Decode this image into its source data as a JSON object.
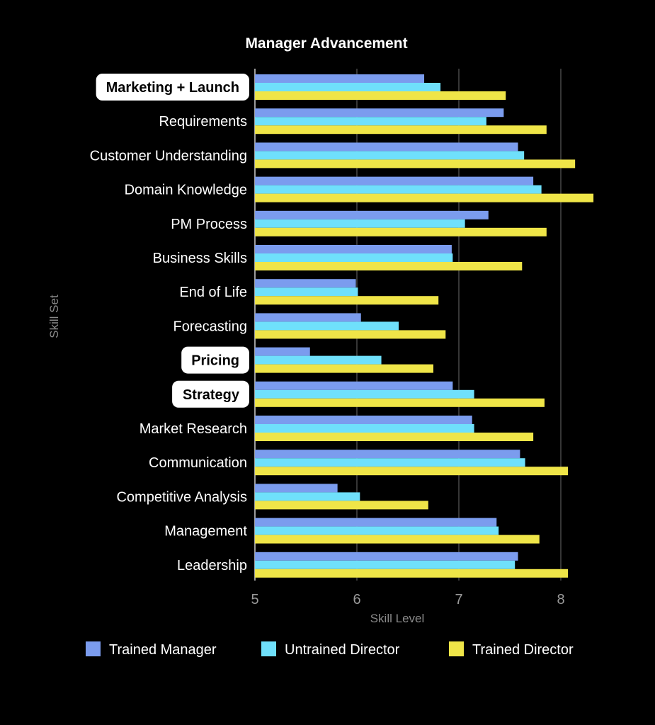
{
  "chart_data": {
    "type": "bar",
    "orientation": "horizontal",
    "title": "Manager Advancement",
    "xlabel": "Skill Level",
    "ylabel": "Skill Set",
    "xlim": [
      5,
      8.35
    ],
    "xticks": [
      5,
      6,
      7,
      8
    ],
    "grid": true,
    "legend_position": "bottom",
    "categories": [
      "Marketing + Launch",
      "Requirements",
      "Customer Understanding",
      "Domain Knowledge",
      "PM Process",
      "Business Skills",
      "End of Life",
      "Forecasting",
      "Pricing",
      "Strategy",
      "Market Research",
      "Communication",
      "Competitive Analysis",
      "Management",
      "Leadership"
    ],
    "highlighted_categories": [
      "Marketing + Launch",
      "Pricing",
      "Strategy"
    ],
    "series": [
      {
        "name": "Trained Manager",
        "color": "#7b9cee",
        "values": [
          6.66,
          7.44,
          7.58,
          7.73,
          7.29,
          6.93,
          5.99,
          6.04,
          5.54,
          6.94,
          7.13,
          7.6,
          5.81,
          7.37,
          7.58
        ]
      },
      {
        "name": "Untrained Director",
        "color": "#6fe0fb",
        "values": [
          6.82,
          7.27,
          7.64,
          7.81,
          7.06,
          6.94,
          6.01,
          6.41,
          6.24,
          7.15,
          7.15,
          7.65,
          6.03,
          7.39,
          7.55
        ]
      },
      {
        "name": "Trained Director",
        "color": "#efe548",
        "values": [
          7.46,
          7.86,
          8.14,
          8.32,
          7.86,
          7.62,
          6.8,
          6.87,
          6.75,
          7.84,
          7.73,
          8.07,
          6.7,
          7.79,
          8.07
        ]
      }
    ]
  }
}
